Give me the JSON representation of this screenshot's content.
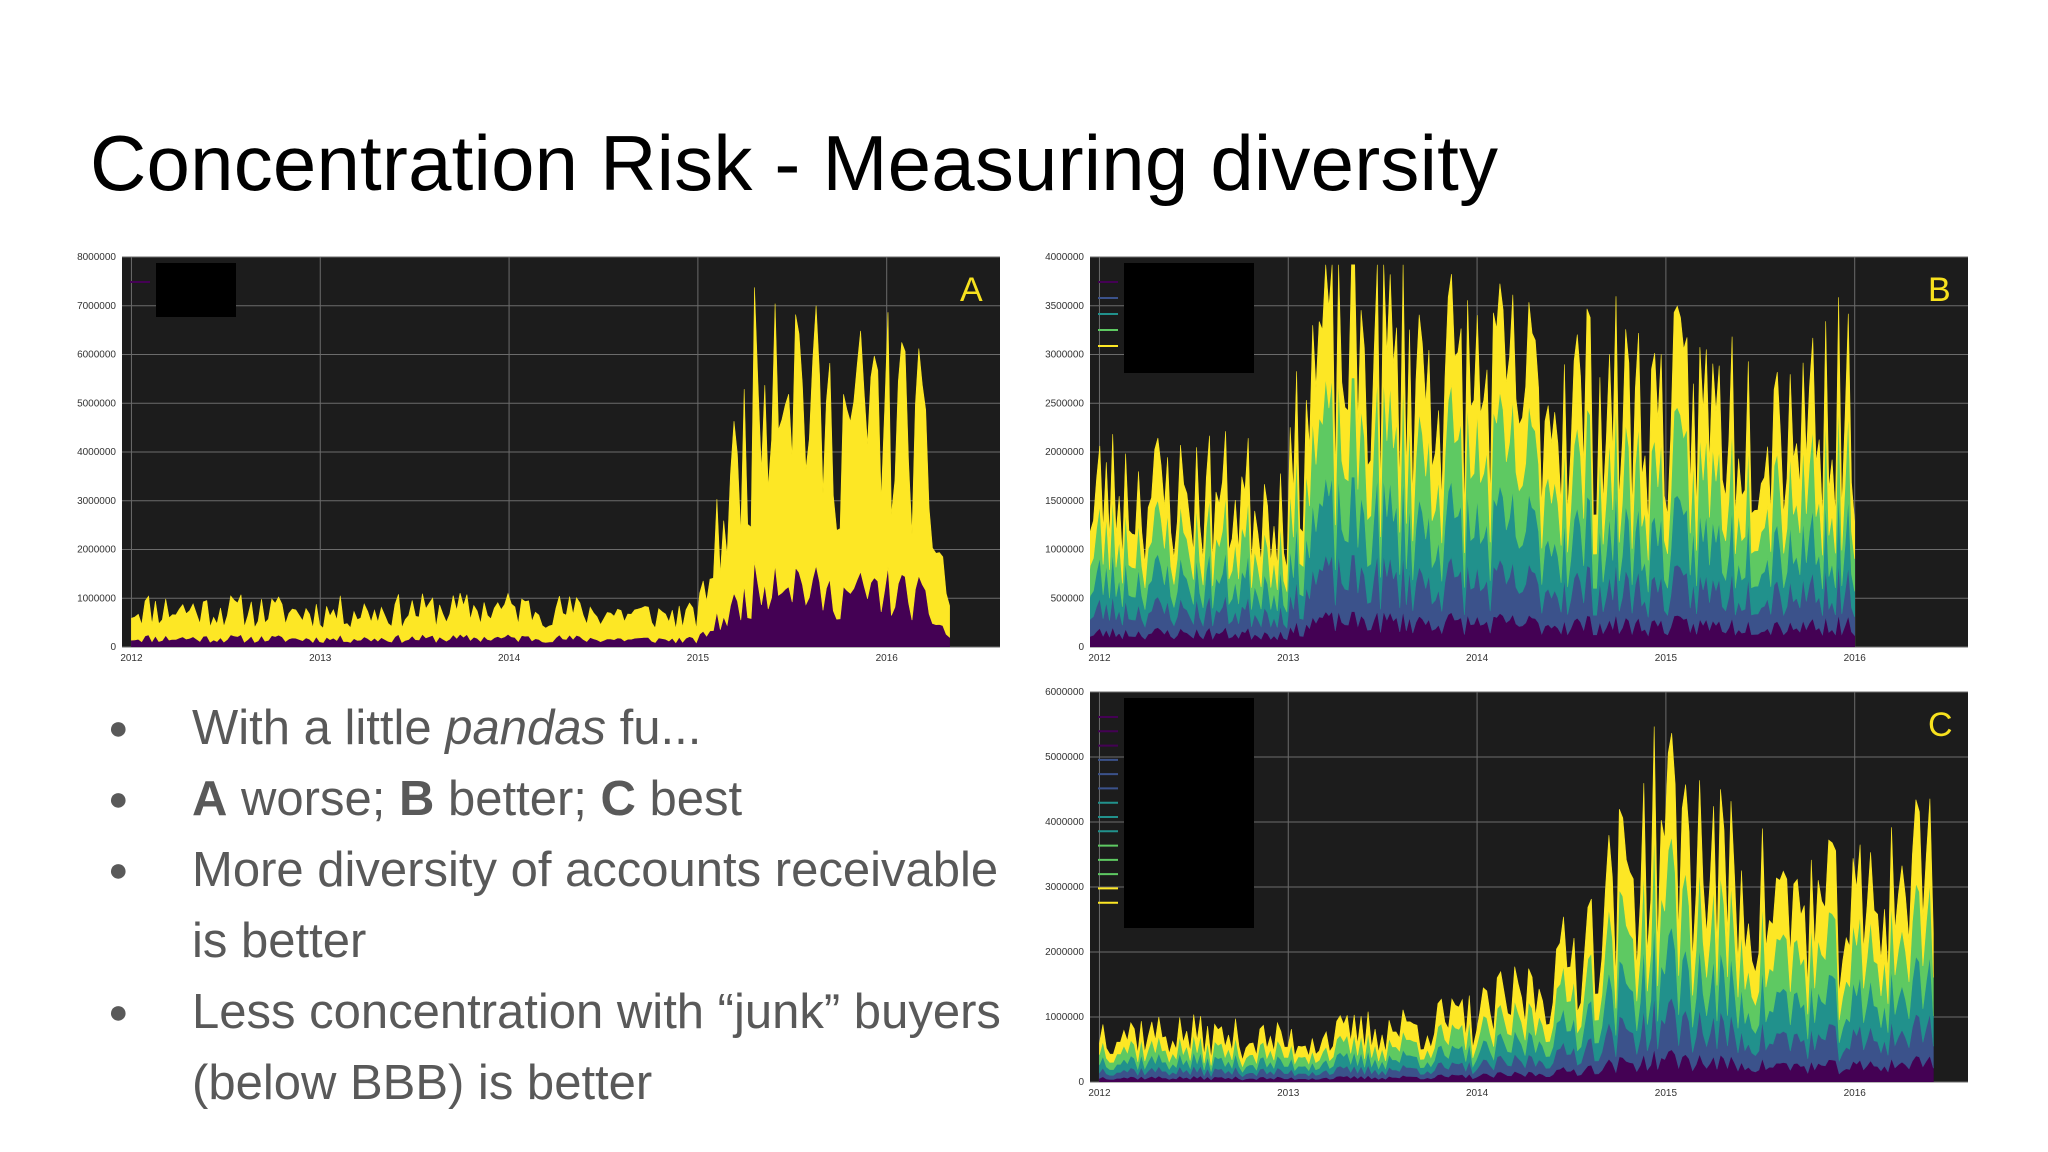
{
  "title": "Concentration Risk - Measuring diversity",
  "bullets": {
    "b1": {
      "pre": "With a little ",
      "em": "pandas",
      "post": " fu..."
    },
    "b2": {
      "a": "A",
      "a_text": " worse; ",
      "b": "B",
      "b_text": " better; ",
      "c": "C",
      "c_text": " best"
    },
    "b3": "More diversity of accounts receivable is better",
    "b4": "Less concentration with “junk” buyers (below BBB) is better"
  },
  "colors": {
    "plot_bg": "#1c1c1c",
    "grid": "#6b6b6b",
    "panel_label": "#f7e11e",
    "legend_redaction": "#000000",
    "viridis": [
      "#440154",
      "#3b528b",
      "#21918c",
      "#5ec962",
      "#fde725"
    ]
  },
  "chart_data": [
    {
      "id": "A",
      "type": "area",
      "panel_label": "A",
      "x_ticks": [
        "2012",
        "2013",
        "2014",
        "2015",
        "2016"
      ],
      "y_ticks": [
        "0",
        "1000000",
        "2000000",
        "3000000",
        "4000000",
        "5000000",
        "6000000",
        "7000000",
        "8000000"
      ],
      "ylim": [
        0,
        8000000
      ],
      "stacked": true,
      "series_count": 2,
      "series_colors": [
        "#440154",
        "#fde725"
      ],
      "legend": {
        "placement": "top-left",
        "redacted": true,
        "entries": 1
      },
      "approx_totals": [
        {
          "x": "2012",
          "y": 900000
        },
        {
          "x": "2013",
          "y": 800000
        },
        {
          "x": "2014",
          "y": 900000
        },
        {
          "x": "2015-01",
          "y": 700000
        },
        {
          "x": "2015-04",
          "y": 4800000
        },
        {
          "x": "2015-06",
          "y": 7800000
        },
        {
          "x": "2015-09",
          "y": 5000000
        },
        {
          "x": "2016-01",
          "y": 5500000
        },
        {
          "x": "2016-03",
          "y": 4800000
        },
        {
          "x": "2016-05",
          "y": 1000000
        }
      ]
    },
    {
      "id": "B",
      "type": "area",
      "panel_label": "B",
      "x_ticks": [
        "2012",
        "2013",
        "2014",
        "2015",
        "2016"
      ],
      "y_ticks": [
        "0",
        "500000",
        "1000000",
        "1500000",
        "2000000",
        "2500000",
        "3000000",
        "3500000",
        "4000000"
      ],
      "ylim": [
        0,
        4000000
      ],
      "stacked": true,
      "series_count": 5,
      "series_colors": [
        "#440154",
        "#3b528b",
        "#21918c",
        "#5ec962",
        "#fde725"
      ],
      "legend": {
        "placement": "top-left",
        "redacted": true,
        "entries": 5
      },
      "approx_totals": [
        {
          "x": "2011-12",
          "y": 900000
        },
        {
          "x": "2012",
          "y": 1800000
        },
        {
          "x": "2013-01",
          "y": 1700000
        },
        {
          "x": "2013-03",
          "y": 3500000
        },
        {
          "x": "2014",
          "y": 3000000
        },
        {
          "x": "2015",
          "y": 2700000
        },
        {
          "x": "2016",
          "y": 2800000
        }
      ]
    },
    {
      "id": "C",
      "type": "area",
      "panel_label": "C",
      "x_ticks": [
        "2012",
        "2013",
        "2014",
        "2015",
        "2016"
      ],
      "y_ticks": [
        "0",
        "1000000",
        "2000000",
        "3000000",
        "4000000",
        "5000000",
        "6000000"
      ],
      "ylim": [
        0,
        6000000
      ],
      "stacked": true,
      "series_count": 14,
      "series_colors": [
        "#440154",
        "#3b528b",
        "#21918c",
        "#5ec962",
        "#fde725"
      ],
      "legend": {
        "placement": "top-left",
        "redacted": true,
        "entries": 14
      },
      "approx_totals": [
        {
          "x": "2012",
          "y": 900000
        },
        {
          "x": "2013",
          "y": 700000
        },
        {
          "x": "2014",
          "y": 1100000
        },
        {
          "x": "2014-06",
          "y": 1800000
        },
        {
          "x": "2015",
          "y": 4500000
        },
        {
          "x": "2015-06",
          "y": 3200000
        },
        {
          "x": "2016",
          "y": 2800000
        },
        {
          "x": "2016-06",
          "y": 4000000
        }
      ]
    }
  ]
}
